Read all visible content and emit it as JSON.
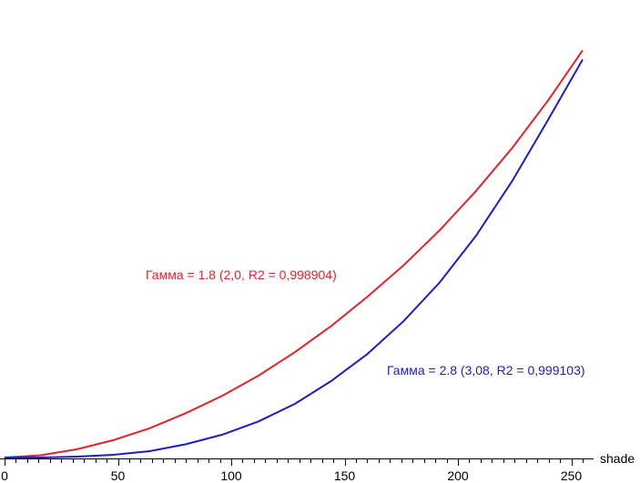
{
  "chart_data": {
    "type": "line",
    "xlabel": "shade",
    "ylabel": "",
    "xlim": [
      0,
      255
    ],
    "ylim": [
      0,
      1
    ],
    "x_ticks": [
      0,
      50,
      100,
      150,
      200,
      250
    ],
    "x_tick_labels": [
      "0",
      "50",
      "100",
      "150",
      "200",
      "250"
    ],
    "grid": false,
    "series": [
      {
        "name": "Гамма = 1.8 (2,0, R2 = 0,998904)",
        "color": "#e8202a",
        "x": [
          0,
          16,
          32,
          48,
          64,
          80,
          96,
          112,
          128,
          144,
          160,
          176,
          192,
          208,
          224,
          240,
          255
        ],
        "y": [
          0.0,
          0.005,
          0.018,
          0.038,
          0.064,
          0.097,
          0.135,
          0.179,
          0.23,
          0.287,
          0.351,
          0.42,
          0.497,
          0.583,
          0.677,
          0.782,
          0.89
        ]
      },
      {
        "name": "Гамма = 2.8 (3,08, R2 = 0,999103)",
        "color": "#1c1ccc",
        "x": [
          0,
          16,
          32,
          48,
          64,
          80,
          96,
          112,
          128,
          144,
          160,
          176,
          192,
          208,
          224,
          240,
          255
        ],
        "y": [
          0.0,
          0.0,
          0.002,
          0.006,
          0.014,
          0.029,
          0.05,
          0.079,
          0.117,
          0.167,
          0.226,
          0.298,
          0.383,
          0.485,
          0.605,
          0.74,
          0.87
        ]
      }
    ]
  }
}
